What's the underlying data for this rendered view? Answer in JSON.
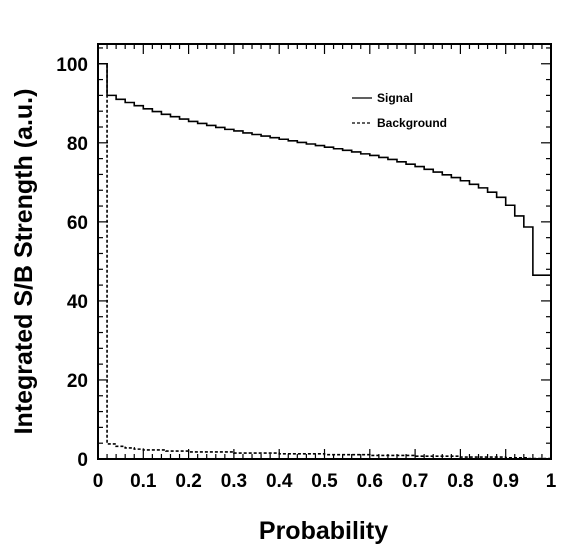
{
  "chart_data": {
    "type": "line",
    "xlabel": "Probability",
    "ylabel": "Integrated S/B Strength (a.u.)",
    "xlim": [
      0,
      1
    ],
    "ylim": [
      0,
      105
    ],
    "x_ticks": [
      "0",
      "0.1",
      "0.2",
      "0.3",
      "0.4",
      "0.5",
      "0.6",
      "0.7",
      "0.8",
      "0.9",
      "1"
    ],
    "y_ticks": [
      "0",
      "20",
      "40",
      "60",
      "80",
      "100"
    ],
    "legend_position": "top-right",
    "series": [
      {
        "name": "Signal",
        "style": "solid",
        "step": true,
        "x": [
          0.0,
          0.02,
          0.04,
          0.06,
          0.08,
          0.1,
          0.12,
          0.14,
          0.16,
          0.18,
          0.2,
          0.22,
          0.24,
          0.26,
          0.28,
          0.3,
          0.32,
          0.34,
          0.36,
          0.38,
          0.4,
          0.42,
          0.44,
          0.46,
          0.48,
          0.5,
          0.52,
          0.54,
          0.56,
          0.58,
          0.6,
          0.62,
          0.64,
          0.66,
          0.68,
          0.7,
          0.72,
          0.74,
          0.76,
          0.78,
          0.8,
          0.82,
          0.84,
          0.86,
          0.88,
          0.9,
          0.92,
          0.94,
          0.96,
          0.98
        ],
        "y": [
          100,
          92.0,
          91.0,
          90.2,
          89.4,
          88.6,
          87.9,
          87.2,
          86.6,
          86.0,
          85.4,
          84.9,
          84.4,
          83.9,
          83.4,
          83.0,
          82.5,
          82.1,
          81.7,
          81.3,
          80.9,
          80.5,
          80.1,
          79.7,
          79.3,
          78.9,
          78.5,
          78.1,
          77.7,
          77.2,
          76.8,
          76.3,
          75.8,
          75.2,
          74.6,
          74.0,
          73.3,
          72.6,
          71.9,
          71.2,
          70.4,
          69.5,
          68.6,
          67.5,
          66.2,
          64.2,
          61.5,
          58.7,
          46.5,
          46.5
        ]
      },
      {
        "name": "Background",
        "style": "dashed",
        "step": true,
        "x": [
          0.0,
          0.02,
          0.04,
          0.06,
          0.08,
          0.1,
          0.15,
          0.2,
          0.3,
          0.4,
          0.5,
          0.6,
          0.7,
          0.8,
          0.9,
          0.95
        ],
        "y": [
          100,
          3.8,
          3.2,
          2.8,
          2.5,
          2.3,
          2.0,
          1.8,
          1.5,
          1.3,
          1.1,
          0.9,
          0.7,
          0.5,
          0.3,
          0.1
        ]
      }
    ]
  }
}
